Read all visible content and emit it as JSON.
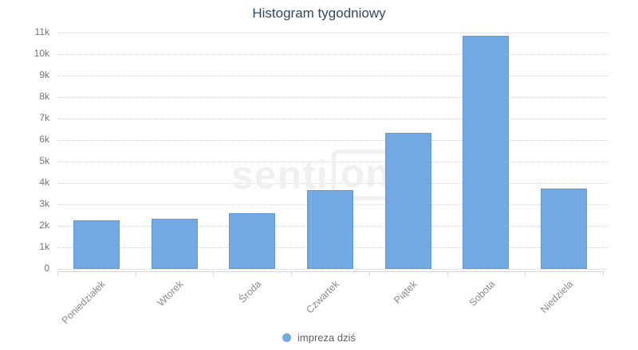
{
  "title": "Histogram tygodniowy",
  "legend": {
    "label": "impreza dziś"
  },
  "watermark": {
    "text_left": "senti",
    "text_right": "one"
  },
  "colors": {
    "bar": "#72a9e2",
    "bar_border": "#5f9ad7",
    "title_text": "#32465e",
    "ytick_text": "#737373",
    "xtick_text": "#8a8a8a",
    "gridline": "#d2d2d2",
    "axis_line": "#d6d6d6",
    "watermark": "#f0f0f0",
    "legend_text": "#5e5e5e"
  },
  "chart_data": {
    "type": "bar",
    "title": "Histogram tygodniowy",
    "categories": [
      "Poniedziałek",
      "Wtorek",
      "Środa",
      "Czwartek",
      "Piątek",
      "Sobota",
      "Niedziela"
    ],
    "series": [
      {
        "name": "impreza dziś",
        "values": [
          2250,
          2350,
          2600,
          3650,
          6350,
          10850,
          3750
        ]
      }
    ],
    "ylim": [
      0,
      11000
    ],
    "ytick_step": 1000,
    "ytick_labels": [
      "0",
      "1k",
      "2k",
      "3k",
      "4k",
      "5k",
      "6k",
      "7k",
      "8k",
      "9k",
      "10k",
      "11k"
    ],
    "xlabel_rotation": -45,
    "grid": "horizontal-dotted",
    "legend_position": "bottom-center"
  }
}
